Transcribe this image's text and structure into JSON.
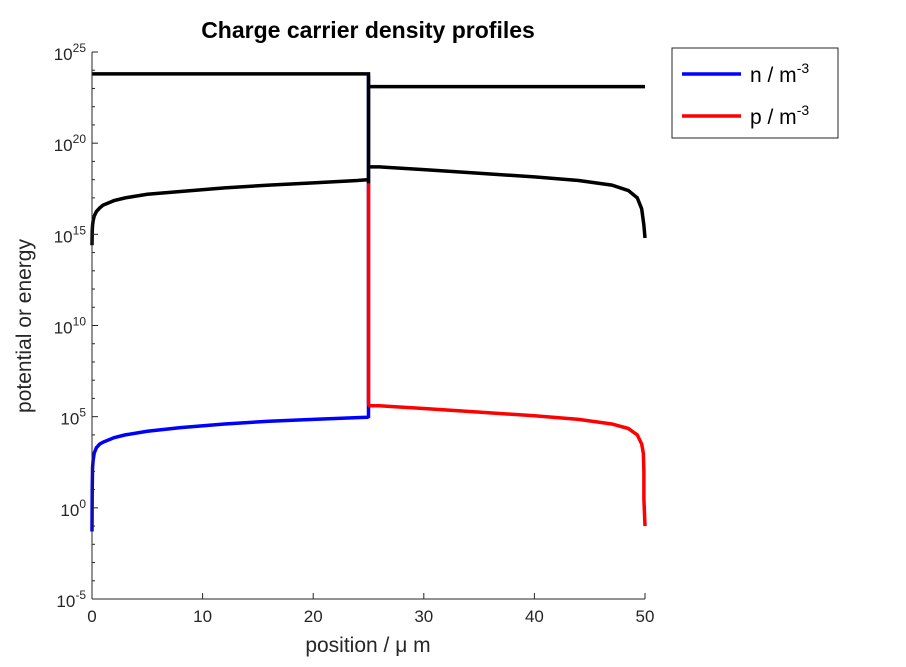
{
  "chart_data": {
    "type": "line",
    "title": "Charge carrier density profiles",
    "xlabel": "position / μ m",
    "ylabel": "potential or energy",
    "x_ticks": [
      0,
      10,
      20,
      30,
      40,
      50
    ],
    "y_ticks": [
      {
        "base": "10",
        "exp": "-5",
        "value": -5
      },
      {
        "base": "10",
        "exp": "0",
        "value": 0
      },
      {
        "base": "10",
        "exp": "5",
        "value": 5
      },
      {
        "base": "10",
        "exp": "10",
        "value": 10
      },
      {
        "base": "10",
        "exp": "15",
        "value": 15
      },
      {
        "base": "10",
        "exp": "20",
        "value": 20
      },
      {
        "base": "10",
        "exp": "25",
        "value": 25
      }
    ],
    "xlim": [
      0,
      50
    ],
    "ylim_log10": [
      -5,
      25
    ],
    "y_scale": "log",
    "grid": false,
    "legend_position": "outside-top-right",
    "legend": [
      {
        "text": "n / m",
        "sup": "-3",
        "color": "#0000ff"
      },
      {
        "text": "p / m",
        "sup": "-3",
        "color": "#ff0000"
      }
    ],
    "series": [
      {
        "name": "n / m-3",
        "color": "#0000ff",
        "x": [
          0,
          0.02,
          0.05,
          0.1,
          0.2,
          0.4,
          0.7,
          1,
          2,
          3,
          5,
          8,
          12,
          16,
          20,
          24,
          24.9,
          25.0,
          25.0
        ],
        "log10": [
          -1.3,
          1.0,
          2.2,
          2.6,
          3.0,
          3.3,
          3.5,
          3.6,
          3.85,
          4.0,
          4.2,
          4.4,
          4.6,
          4.75,
          4.85,
          4.95,
          4.97,
          5.0,
          23.7
        ]
      },
      {
        "name": "p / m-3",
        "color": "#ff0000",
        "x": [
          25.0,
          25.0,
          25.1,
          26,
          30,
          35,
          40,
          44,
          47,
          48.5,
          49.3,
          49.7,
          49.85,
          49.9,
          49.9,
          50
        ],
        "log10": [
          17.8,
          5.7,
          5.6,
          5.6,
          5.45,
          5.25,
          5.05,
          4.85,
          4.6,
          4.35,
          4.0,
          3.5,
          3.0,
          2.0,
          0.5,
          -1.0
        ]
      },
      {
        "name": "",
        "color": "#000000",
        "x": [
          0,
          25.0,
          25.0,
          25.0,
          50
        ],
        "log10": [
          23.8,
          23.8,
          17.8,
          23.1,
          23.1
        ]
      },
      {
        "name": "",
        "color": "#000000",
        "x": [
          0,
          0.02,
          0.05,
          0.1,
          0.2,
          0.4,
          0.7,
          1,
          2,
          3,
          5,
          8,
          12,
          16,
          20,
          24,
          25.0
        ],
        "log10": [
          14.4,
          15.2,
          15.5,
          15.75,
          16.0,
          16.25,
          16.45,
          16.6,
          16.85,
          17.0,
          17.2,
          17.35,
          17.55,
          17.7,
          17.82,
          17.95,
          18.0
        ]
      },
      {
        "name": "",
        "color": "#000000",
        "x": [
          25.0,
          26,
          30,
          35,
          40,
          44,
          47,
          48.5,
          49.3,
          49.7,
          49.9,
          50
        ],
        "log10": [
          18.7,
          18.7,
          18.55,
          18.35,
          18.15,
          17.95,
          17.7,
          17.4,
          17.0,
          16.4,
          15.5,
          14.8
        ]
      }
    ]
  }
}
